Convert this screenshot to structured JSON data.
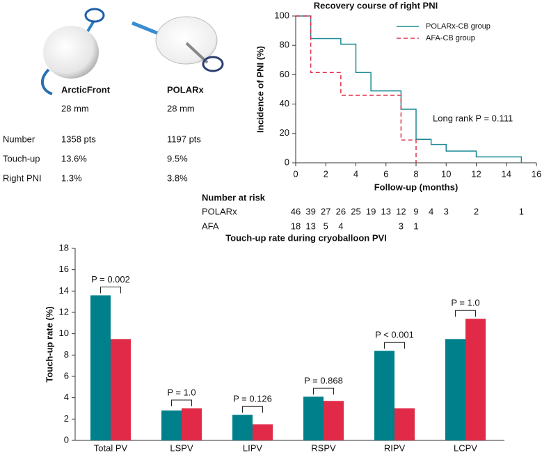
{
  "device_table": {
    "devices": [
      {
        "name": "ArcticFront",
        "size": "28 mm"
      },
      {
        "name": "POLARx",
        "size": "28 mm"
      }
    ],
    "rows": [
      {
        "label": "Number",
        "values": [
          "1358 pts",
          "1197 pts"
        ]
      },
      {
        "label": "Touch-up",
        "values": [
          "13.6%",
          "9.5%"
        ]
      },
      {
        "label": "Right PNI",
        "values": [
          "1.3%",
          "3.8%"
        ]
      }
    ]
  },
  "chart_data": [
    {
      "type": "line",
      "title": "Recovery course of right PNI",
      "xlabel": "Follow-up (months)",
      "ylabel": "Incidence of PNI (%)",
      "xlim": [
        0,
        16
      ],
      "xticks": [
        0,
        2,
        4,
        6,
        8,
        10,
        12,
        14,
        16
      ],
      "ylim": [
        0,
        100
      ],
      "yticks": [
        0,
        20,
        40,
        60,
        80,
        100
      ],
      "legend": "upper right",
      "series": [
        {
          "name": "POLARx-CB group",
          "color": "#1a8a96",
          "dashed": false,
          "x": [
            0,
            1,
            1,
            3,
            3,
            4,
            4,
            5,
            5,
            7,
            7,
            8,
            8,
            9,
            9,
            10,
            10,
            12,
            12,
            15,
            15
          ],
          "values": [
            100,
            100,
            84.6,
            84.6,
            80.8,
            80.8,
            61.5,
            61.5,
            49,
            49,
            36.5,
            36.5,
            16,
            16,
            12.5,
            12.5,
            8,
            8,
            4,
            4,
            0
          ]
        },
        {
          "name": "AFA-CB group",
          "color": "#e0304a",
          "dashed": true,
          "x": [
            0,
            1,
            1,
            3,
            3,
            7,
            7,
            8,
            8
          ],
          "values": [
            100,
            100,
            61.5,
            61.5,
            46,
            46,
            15.5,
            15.5,
            0
          ]
        }
      ],
      "annotation": "Long rank P = 0.111",
      "risk_table": {
        "title": "Number at risk",
        "rows": [
          {
            "name": "POLARx",
            "x": [
              0,
              1,
              2,
              3,
              4,
              5,
              6,
              7,
              8,
              9,
              10,
              12,
              15
            ],
            "counts": [
              46,
              39,
              27,
              26,
              25,
              19,
              13,
              12,
              9,
              4,
              3,
              2,
              1
            ]
          },
          {
            "name": "AFA",
            "x": [
              0,
              1,
              2,
              3,
              7,
              8
            ],
            "counts": [
              18,
              13,
              5,
              4,
              3,
              1
            ]
          }
        ]
      }
    },
    {
      "type": "bar",
      "title": "Touch-up rate during cryoballoon PVI",
      "ylabel": "Touch-up rate (%)",
      "categories": [
        "Total PV",
        "LSPV",
        "LIPV",
        "RSPV",
        "RIPV",
        "LCPV"
      ],
      "series": [
        {
          "color": "#00808a",
          "values": [
            13.6,
            2.8,
            2.4,
            4.1,
            8.4,
            9.5
          ]
        },
        {
          "color": "#e02a47",
          "values": [
            9.5,
            3.0,
            1.5,
            3.7,
            3.0,
            11.4
          ]
        }
      ],
      "ylim": [
        0,
        18
      ],
      "yticks": [
        0,
        2,
        4,
        6,
        8,
        10,
        12,
        14,
        16,
        18
      ],
      "p_values": [
        "P = 0.002",
        "P = 1.0",
        "P = 0.126",
        "P = 0.868",
        "P < 0.001",
        "P = 1.0"
      ]
    }
  ]
}
